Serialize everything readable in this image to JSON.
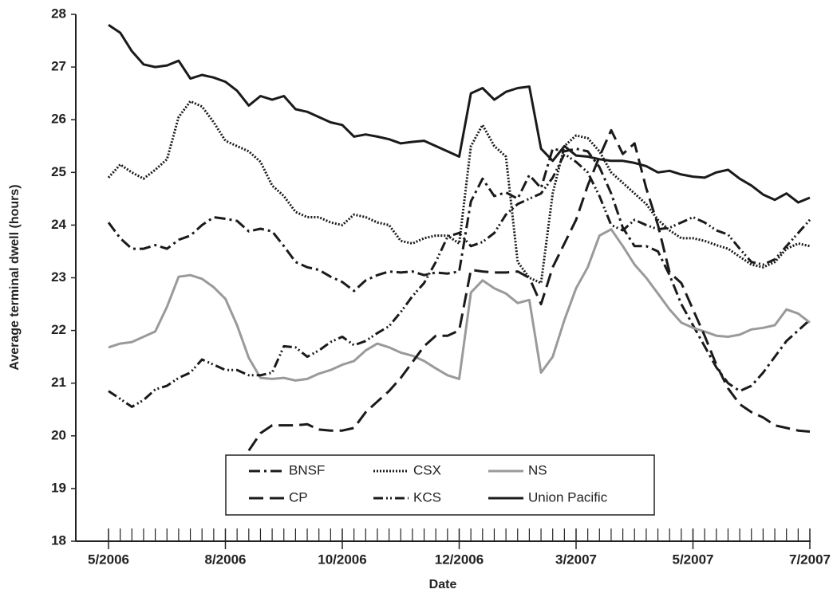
{
  "chart_data": {
    "type": "line",
    "xlabel": "Date",
    "ylabel": "Average terminal dwell (hours)",
    "ylim": [
      18,
      28
    ],
    "yticks": [
      18,
      19,
      20,
      21,
      22,
      23,
      24,
      25,
      26,
      27,
      28
    ],
    "grid": false,
    "legend": "bottom-center",
    "categories": [
      "5/2006",
      null,
      null,
      null,
      null,
      null,
      null,
      null,
      null,
      null,
      "8/2006",
      null,
      null,
      null,
      null,
      null,
      null,
      null,
      null,
      null,
      "10/2006",
      null,
      null,
      null,
      null,
      null,
      null,
      null,
      null,
      null,
      "12/2006",
      null,
      null,
      null,
      null,
      null,
      null,
      null,
      null,
      null,
      "3/2007",
      null,
      null,
      null,
      null,
      null,
      null,
      null,
      null,
      null,
      "5/2007",
      null,
      null,
      null,
      null,
      null,
      null,
      null,
      null,
      null,
      "7/2007"
    ],
    "series": [
      {
        "name": "BNSF",
        "color": "#1a1a1a",
        "dash": "14,5,3,5",
        "values": [
          24.05,
          23.75,
          23.55,
          23.55,
          23.62,
          23.55,
          23.72,
          23.8,
          24.0,
          24.15,
          24.12,
          24.08,
          23.88,
          23.93,
          23.88,
          23.6,
          23.3,
          23.2,
          23.15,
          23.02,
          22.92,
          22.75,
          22.95,
          23.05,
          23.12,
          23.1,
          23.12,
          23.05,
          23.1,
          23.08,
          23.12,
          24.45,
          24.88,
          24.55,
          24.62,
          24.5,
          24.95,
          24.7,
          25.45,
          25.4,
          25.45,
          25.4,
          25.1,
          24.6,
          23.95,
          23.6,
          23.6,
          23.5,
          23.05,
          22.5,
          22.1,
          21.7,
          21.3,
          21.0,
          20.85,
          20.95,
          21.2,
          21.5,
          21.8,
          22.0,
          22.2
        ]
      },
      {
        "name": "CSX",
        "color": "#1a1a1a",
        "dash": "2,2",
        "values": [
          24.9,
          25.15,
          25.0,
          24.88,
          25.05,
          25.25,
          26.05,
          26.35,
          26.25,
          25.95,
          25.6,
          25.5,
          25.4,
          25.2,
          24.75,
          24.55,
          24.25,
          24.15,
          24.15,
          24.05,
          24.0,
          24.2,
          24.15,
          24.05,
          24.0,
          23.7,
          23.65,
          23.75,
          23.8,
          23.8,
          23.65,
          25.5,
          25.9,
          25.5,
          25.3,
          23.3,
          23.0,
          22.9,
          24.6,
          25.5,
          25.7,
          25.65,
          25.4,
          25.0,
          24.8,
          24.6,
          24.4,
          24.1,
          23.9,
          23.75,
          23.75,
          23.7,
          23.62,
          23.55,
          23.4,
          23.25,
          23.2,
          23.3,
          23.55,
          23.65,
          23.6
        ]
      },
      {
        "name": "NS",
        "color": "#9a9a9a",
        "dash": "none",
        "values": [
          21.68,
          21.75,
          21.78,
          21.88,
          21.98,
          22.45,
          23.02,
          23.05,
          22.98,
          22.82,
          22.6,
          22.1,
          21.48,
          21.1,
          21.08,
          21.1,
          21.05,
          21.08,
          21.18,
          21.25,
          21.35,
          21.42,
          21.62,
          21.75,
          21.68,
          21.58,
          21.52,
          21.42,
          21.28,
          21.15,
          21.08,
          22.72,
          22.95,
          22.8,
          22.7,
          22.52,
          22.58,
          21.2,
          21.5,
          22.2,
          22.8,
          23.2,
          23.8,
          23.92,
          23.6,
          23.25,
          23.0,
          22.7,
          22.4,
          22.15,
          22.05,
          21.98,
          21.9,
          21.88,
          21.92,
          22.02,
          22.05,
          22.1,
          22.4,
          22.32,
          22.15
        ]
      },
      {
        "name": "CP",
        "color": "#1a1a1a",
        "dash": "18,8",
        "values": [
          null,
          null,
          null,
          null,
          null,
          null,
          null,
          null,
          null,
          null,
          null,
          null,
          19.72,
          20.05,
          20.2,
          20.2,
          20.2,
          20.22,
          20.12,
          20.1,
          20.1,
          20.15,
          20.45,
          20.65,
          20.85,
          21.1,
          21.4,
          21.7,
          21.9,
          21.9,
          22.0,
          23.15,
          23.12,
          23.1,
          23.1,
          23.12,
          23.0,
          22.5,
          23.2,
          23.65,
          24.1,
          24.75,
          25.3,
          25.8,
          25.35,
          25.55,
          24.7,
          24.0,
          23.1,
          22.9,
          22.4,
          21.9,
          21.35,
          20.9,
          20.6,
          20.45,
          20.35,
          20.2,
          20.15,
          20.1,
          20.08
        ]
      },
      {
        "name": "KCS",
        "color": "#1a1a1a",
        "dash": "12,4,2,3,2,4",
        "values": [
          20.85,
          20.7,
          20.55,
          20.68,
          20.88,
          20.95,
          21.1,
          21.2,
          21.45,
          21.35,
          21.25,
          21.25,
          21.15,
          21.15,
          21.2,
          21.7,
          21.68,
          21.5,
          21.62,
          21.78,
          21.88,
          21.72,
          21.8,
          21.95,
          22.08,
          22.35,
          22.65,
          22.9,
          23.3,
          23.78,
          23.85,
          23.6,
          23.68,
          23.85,
          24.2,
          24.4,
          24.5,
          24.6,
          24.9,
          25.35,
          25.2,
          25.0,
          24.55,
          24.0,
          23.9,
          24.1,
          24.0,
          23.92,
          23.95,
          24.05,
          24.15,
          24.05,
          23.9,
          23.82,
          23.55,
          23.3,
          23.25,
          23.35,
          23.6,
          23.85,
          24.1
        ]
      },
      {
        "name": "Union Pacific",
        "color": "#1a1a1a",
        "dash": "none",
        "values": [
          27.8,
          27.65,
          27.3,
          27.05,
          27.0,
          27.03,
          27.12,
          26.78,
          26.85,
          26.8,
          26.72,
          26.55,
          26.27,
          26.45,
          26.38,
          26.45,
          26.2,
          26.15,
          26.05,
          25.95,
          25.9,
          25.68,
          25.72,
          25.68,
          25.63,
          25.55,
          25.58,
          25.6,
          25.5,
          25.4,
          25.3,
          26.5,
          26.6,
          26.38,
          26.53,
          26.6,
          26.63,
          25.45,
          25.22,
          25.5,
          25.32,
          25.3,
          25.25,
          25.22,
          25.22,
          25.18,
          25.12,
          25.0,
          25.03,
          24.96,
          24.92,
          24.9,
          25.0,
          25.05,
          24.88,
          24.75,
          24.58,
          24.48,
          24.6,
          24.43,
          24.52
        ]
      }
    ]
  }
}
